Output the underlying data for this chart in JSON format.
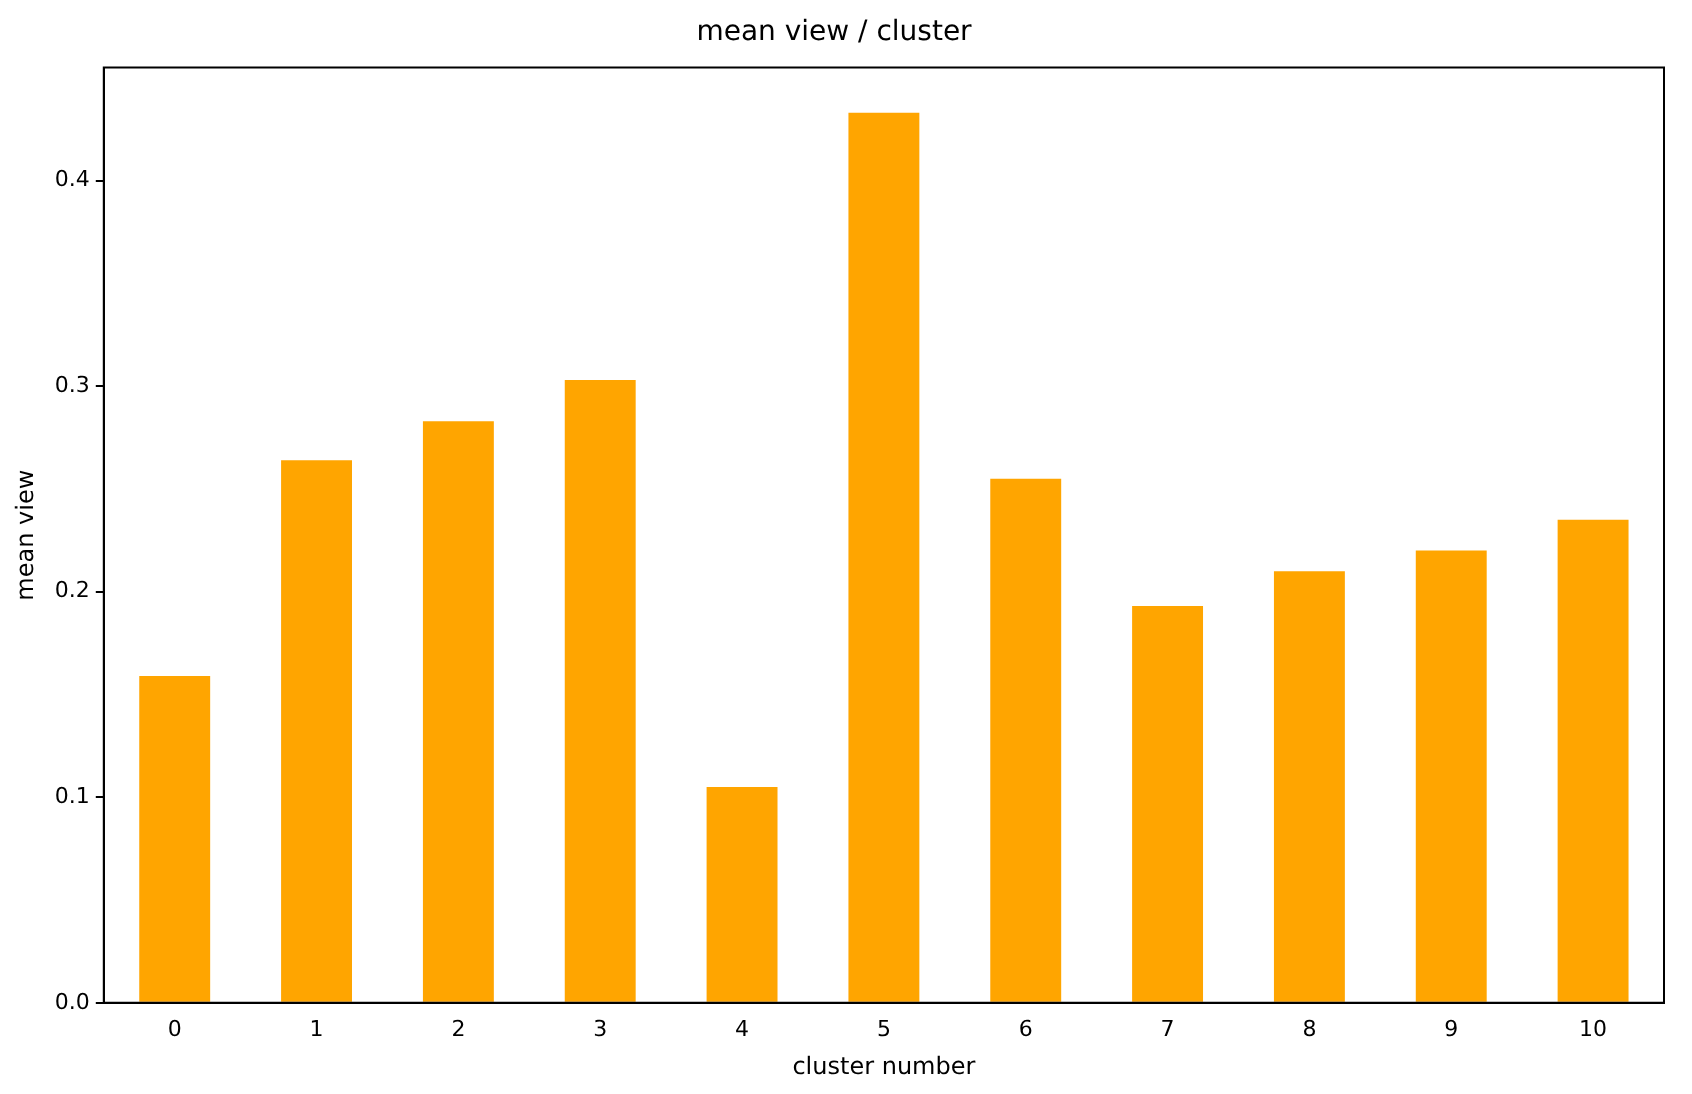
{
  "chart_data": {
    "type": "bar",
    "title": "mean view / cluster",
    "xlabel": "cluster number",
    "ylabel": "mean view",
    "categories": [
      "0",
      "1",
      "2",
      "3",
      "4",
      "5",
      "6",
      "7",
      "8",
      "9",
      "10"
    ],
    "values": [
      0.159,
      0.264,
      0.283,
      0.303,
      0.105,
      0.433,
      0.255,
      0.193,
      0.21,
      0.22,
      0.235
    ],
    "color": "#ffa500",
    "ylim": [
      0,
      0.455
    ],
    "yticks": [
      {
        "value": 0,
        "label": "0.0"
      },
      {
        "value": 0.1,
        "label": "0.1"
      },
      {
        "value": 0.2,
        "label": "0.2"
      },
      {
        "value": 0.3,
        "label": "0.3"
      },
      {
        "value": 0.4,
        "label": "0.4"
      }
    ],
    "grid": false,
    "legend": false
  }
}
